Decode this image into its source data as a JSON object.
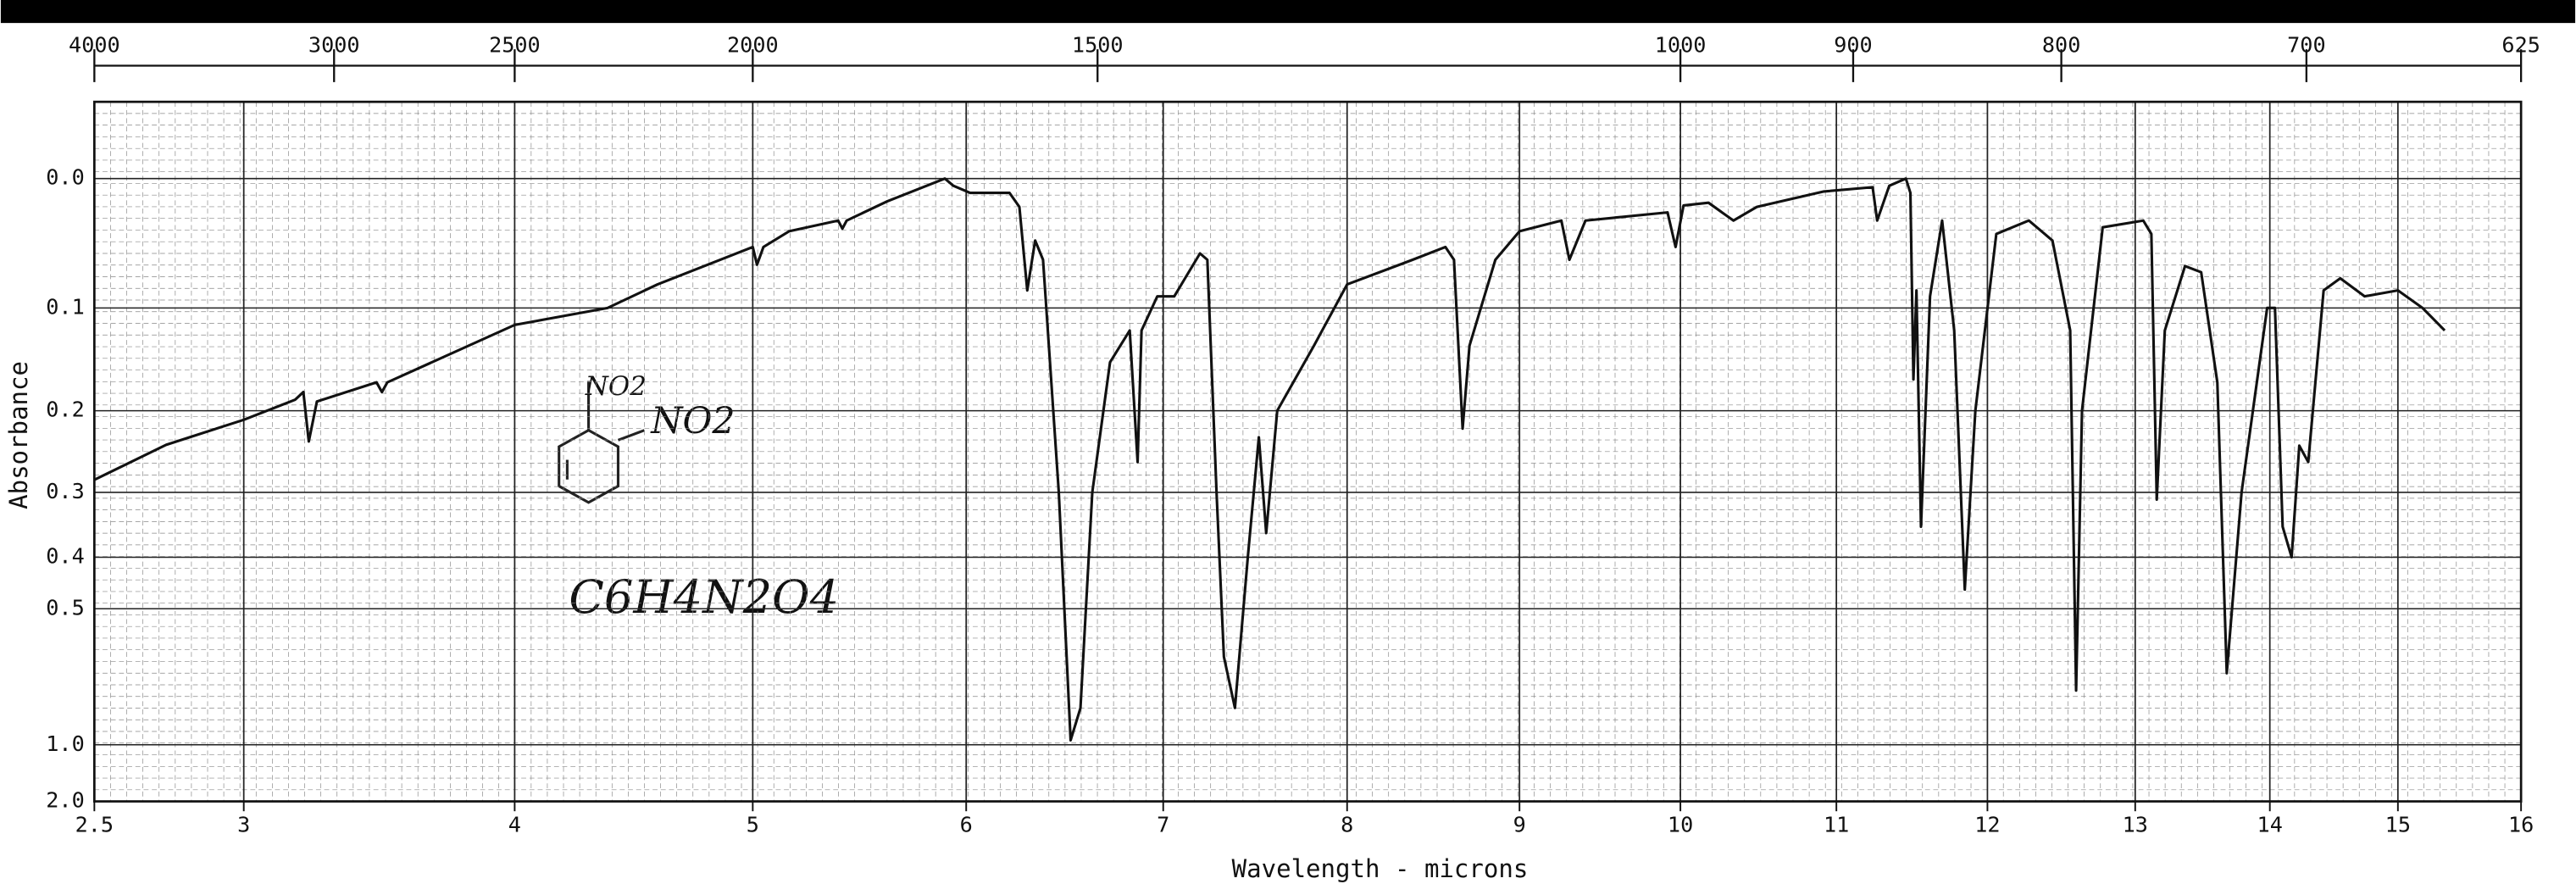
{
  "chart_data": {
    "type": "line",
    "xlabel": "Wavelength - microns",
    "ylabel": "Absorbance",
    "xlim": [
      2.5,
      16
    ],
    "xticks": [
      {
        "value": 2.5,
        "label": "2.5"
      },
      3,
      4,
      5,
      6,
      7,
      8,
      9,
      10,
      11,
      12,
      13,
      14,
      15,
      16
    ],
    "x2scale": "wavenumber",
    "x2ticks": [
      4000,
      3000,
      2500,
      2000,
      1500,
      1000,
      900,
      800,
      700,
      625
    ],
    "yscale": "absorbance",
    "ylim": [
      -0.05,
      2
    ],
    "yticks": [
      {
        "value": 0,
        "label": "0.0"
      },
      0.1,
      0.2,
      0.3,
      0.4,
      0.5,
      {
        "value": 1,
        "label": "1.0"
      },
      {
        "value": 2,
        "label": "2.0"
      }
    ],
    "grid": true,
    "annotations": [
      "NO2",
      "NO2",
      "C6H4N2O4"
    ],
    "x": [
      2.5,
      2.74,
      3.0,
      3.19,
      3.22,
      3.24,
      3.27,
      3.49,
      3.51,
      3.53,
      4.0,
      4.39,
      4.6,
      5.0,
      5.02,
      5.05,
      5.17,
      5.4,
      5.42,
      5.44,
      5.63,
      5.9,
      5.94,
      6.02,
      6.22,
      6.27,
      6.31,
      6.35,
      6.39,
      6.47,
      6.53,
      6.58,
      6.64,
      6.73,
      6.83,
      6.87,
      6.89,
      6.97,
      7.06,
      7.2,
      7.24,
      7.29,
      7.33,
      7.39,
      7.46,
      7.52,
      7.56,
      7.62,
      7.82,
      8.0,
      8.38,
      8.57,
      8.62,
      8.67,
      8.71,
      8.86,
      9.0,
      9.26,
      9.31,
      9.41,
      9.92,
      9.97,
      10.02,
      10.18,
      10.34,
      10.49,
      10.92,
      11.24,
      11.27,
      11.35,
      11.46,
      11.49,
      11.51,
      11.53,
      11.56,
      11.62,
      11.7,
      11.78,
      11.85,
      11.92,
      12.06,
      12.28,
      12.44,
      12.56,
      12.6,
      12.64,
      12.78,
      13.06,
      13.12,
      13.16,
      13.22,
      13.37,
      13.49,
      13.61,
      13.68,
      13.79,
      13.98,
      14.04,
      14.1,
      14.17,
      14.23,
      14.3,
      14.42,
      14.55,
      14.74,
      15.0,
      15.2,
      15.38
    ],
    "series": [
      {
        "color": "#111111",
        "values": [
          0.283,
          0.239,
          0.21,
          0.188,
          0.18,
          0.235,
          0.19,
          0.17,
          0.18,
          0.17,
          0.115,
          0.1,
          0.08,
          0.05,
          0.064,
          0.05,
          0.038,
          0.03,
          0.036,
          0.03,
          0.016,
          0.0,
          0.005,
          0.01,
          0.01,
          0.02,
          0.085,
          0.045,
          0.06,
          0.3,
          0.97,
          0.8,
          0.3,
          0.15,
          0.12,
          0.26,
          0.12,
          0.09,
          0.09,
          0.055,
          0.06,
          0.3,
          0.62,
          0.8,
          0.4,
          0.23,
          0.36,
          0.2,
          0.134,
          0.08,
          0.06,
          0.05,
          0.06,
          0.22,
          0.134,
          0.06,
          0.038,
          0.03,
          0.06,
          0.03,
          0.024,
          0.05,
          0.019,
          0.017,
          0.03,
          0.02,
          0.009,
          0.006,
          0.03,
          0.005,
          0.0,
          0.01,
          0.167,
          0.085,
          0.35,
          0.09,
          0.03,
          0.12,
          0.46,
          0.2,
          0.04,
          0.03,
          0.045,
          0.12,
          0.73,
          0.2,
          0.035,
          0.03,
          0.04,
          0.31,
          0.12,
          0.065,
          0.07,
          0.17,
          0.67,
          0.3,
          0.1,
          0.1,
          0.35,
          0.4,
          0.24,
          0.26,
          0.085,
          0.075,
          0.09,
          0.085,
          0.1,
          0.12
        ]
      }
    ]
  }
}
